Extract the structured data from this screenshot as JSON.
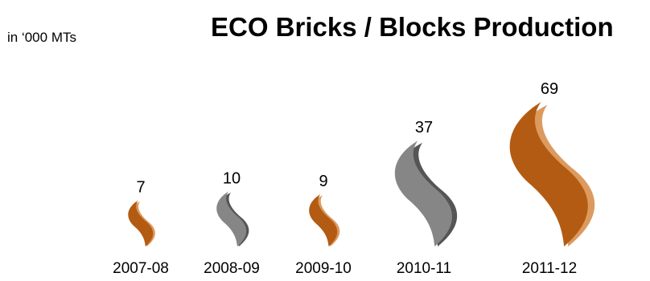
{
  "unit_label": "in ‘000 MTs",
  "colors": {
    "orange_main": "#b35b13",
    "orange_side": "#dd9a5f",
    "gray_main": "#868686",
    "gray_side": "#555555"
  },
  "chart_data": {
    "type": "bar",
    "mark_shape": "flame",
    "title": "ECO Bricks / Blocks Production",
    "xlabel": "",
    "ylabel": "",
    "categories": [
      "2007-08",
      "2008-09",
      "2009-10",
      "2010-11",
      "2011-12"
    ],
    "series": [
      {
        "values": [
          7,
          10,
          9,
          37,
          69
        ],
        "colors": [
          "orange",
          "gray",
          "orange",
          "gray",
          "orange"
        ]
      }
    ],
    "data_labels": [
      "7",
      "10",
      "9",
      "37",
      "69"
    ],
    "grid": false,
    "legend": "none"
  }
}
